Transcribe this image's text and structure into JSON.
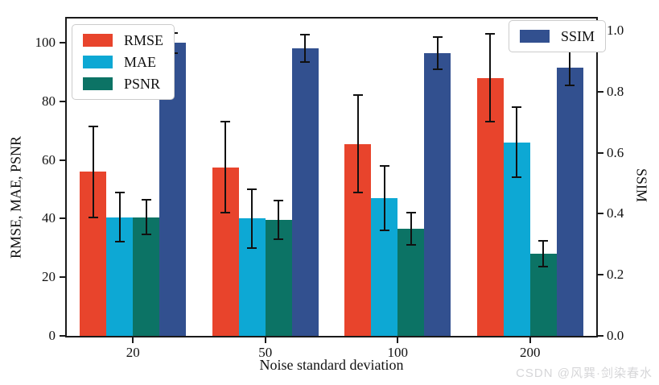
{
  "watermark": {
    "text": "CSDN @风巽·剑染春水",
    "color": "#d6d6d8"
  },
  "colors": {
    "spine": "#1a1a1a",
    "errorbar": "#111111",
    "background": "#ffffff"
  },
  "chart_data": {
    "type": "bar",
    "title": "",
    "xlabel": "Noise standard deviation",
    "ylabel_left": "RMSE, MAE, PSNR",
    "ylabel_right": "SSIM",
    "categories": [
      "20",
      "50",
      "100",
      "200"
    ],
    "series": [
      {
        "name": "RMSE",
        "axis": "left",
        "color": "#e8442c",
        "values": [
          56,
          57.5,
          65.5,
          88
        ],
        "errors": [
          15.5,
          15.5,
          16.5,
          15
        ]
      },
      {
        "name": "MAE",
        "axis": "left",
        "color": "#0da8d4",
        "values": [
          40.5,
          40,
          47,
          66
        ],
        "errors": [
          8.5,
          10,
          11,
          12
        ]
      },
      {
        "name": "PSNR",
        "axis": "left",
        "color": "#0c7365",
        "values": [
          40.5,
          39.5,
          36.5,
          28
        ],
        "errors": [
          6,
          6.5,
          5.5,
          4.5
        ]
      },
      {
        "name": "SSIM",
        "axis": "right",
        "color": "#32508f",
        "values": [
          0.96,
          0.943,
          0.927,
          0.878
        ],
        "errors": [
          0.033,
          0.045,
          0.053,
          0.057
        ]
      }
    ],
    "left_axis": {
      "tick_values": [
        0,
        20,
        40,
        60,
        80,
        100
      ],
      "tick_labels": [
        "0",
        "20",
        "40",
        "60",
        "80",
        "100"
      ],
      "range": [
        0,
        108.2
      ]
    },
    "right_axis": {
      "tick_values": [
        0,
        0.2,
        0.4,
        0.6,
        0.8,
        1.0
      ],
      "tick_labels": [
        "0.0",
        "0.2",
        "0.4",
        "0.6",
        "0.8",
        "1.0"
      ],
      "range": [
        0,
        1.04
      ]
    },
    "legend_left": [
      "RMSE",
      "MAE",
      "PSNR"
    ],
    "legend_right": [
      "SSIM"
    ],
    "grid": false,
    "legend_position": "upper left and upper right, inside axes"
  }
}
